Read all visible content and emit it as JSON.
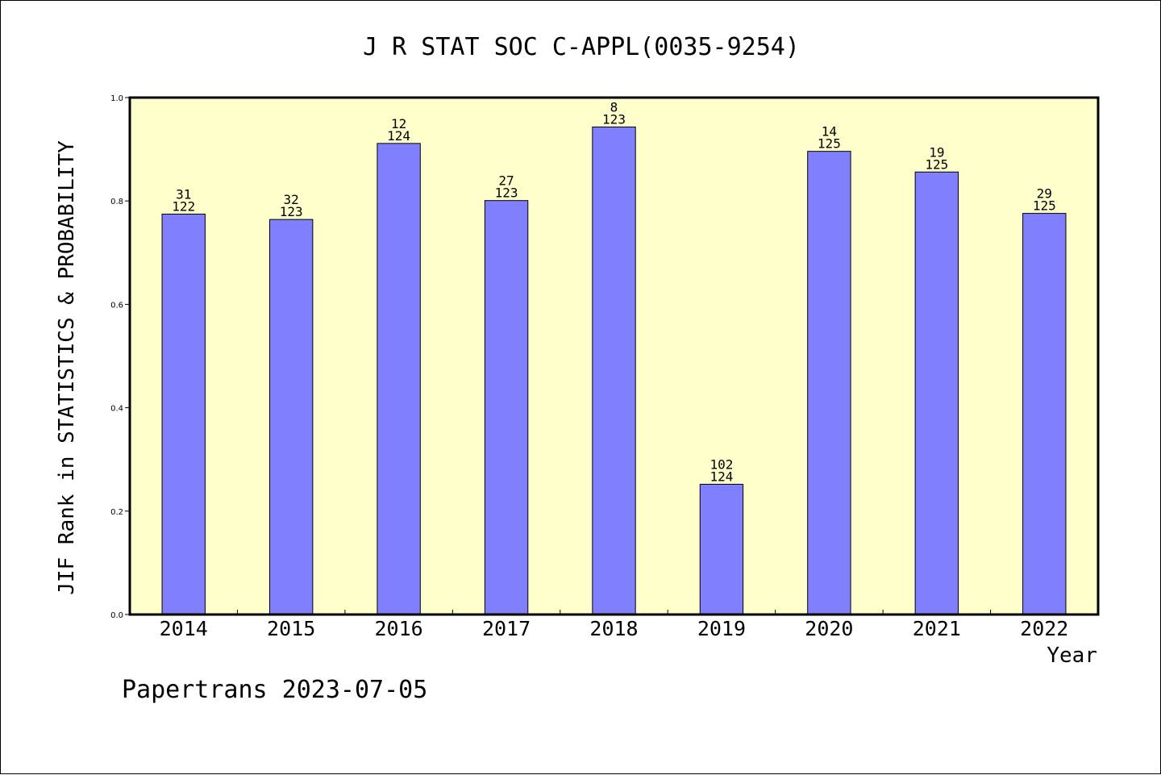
{
  "chart_data": {
    "type": "bar",
    "title": "J R STAT SOC C-APPL(0035-9254)",
    "xlabel": "Year",
    "ylabel": "JIF Rank in STATISTICS & PROBABILITY",
    "categories": [
      "2014",
      "2015",
      "2016",
      "2017",
      "2018",
      "2019",
      "2020",
      "2021",
      "2022"
    ],
    "values": [
      0.7746,
      0.7642,
      0.9113,
      0.8008,
      0.9431,
      0.252,
      0.896,
      0.856,
      0.776
    ],
    "rank": [
      "31",
      "32",
      "12",
      "27",
      "8",
      "102",
      "14",
      "19",
      "29"
    ],
    "total": [
      "122",
      "123",
      "124",
      "123",
      "123",
      "124",
      "125",
      "125",
      "125"
    ],
    "ylim": [
      0.0,
      1.0
    ],
    "yticks": [
      "0.0",
      "0.2",
      "0.4",
      "0.6",
      "0.8",
      "1.0"
    ],
    "grid": false,
    "colors": {
      "bar": "#8080ff",
      "plot_background": "#ffffcc"
    }
  },
  "footer": "Papertrans 2023-07-05"
}
